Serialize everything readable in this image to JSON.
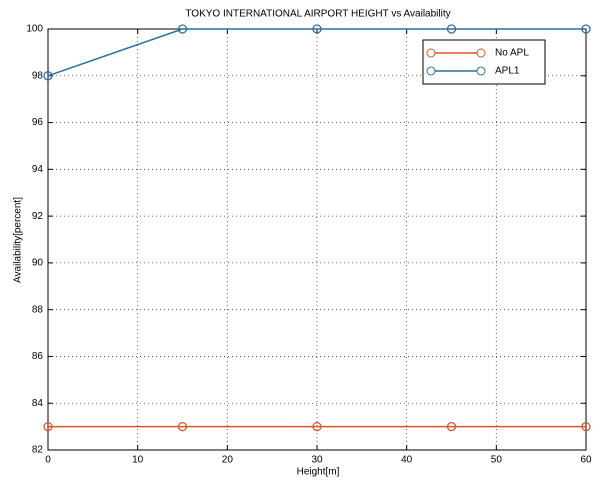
{
  "chart_data": {
    "type": "line",
    "title": "TOKYO INTERNATIONAL AIRPORT HEIGHT vs Availability",
    "x_label": "Height[m]",
    "y_label": "Availability[percent]",
    "x": [
      0,
      15,
      30,
      45,
      60
    ],
    "series": [
      {
        "name": "No APL",
        "color": "#d9542b",
        "values": [
          83,
          83,
          83,
          83,
          83
        ]
      },
      {
        "name": "APL1",
        "color": "#2f6f9f",
        "values": [
          98,
          100,
          100,
          100,
          100
        ]
      }
    ],
    "xlim": [
      0,
      60
    ],
    "xticks": [
      0,
      10,
      20,
      30,
      40,
      50,
      60
    ],
    "ylim": [
      82,
      100
    ],
    "yticks": [
      82,
      84,
      86,
      88,
      90,
      92,
      94,
      96,
      98,
      100
    ],
    "grid": true,
    "legend": "upper right"
  }
}
